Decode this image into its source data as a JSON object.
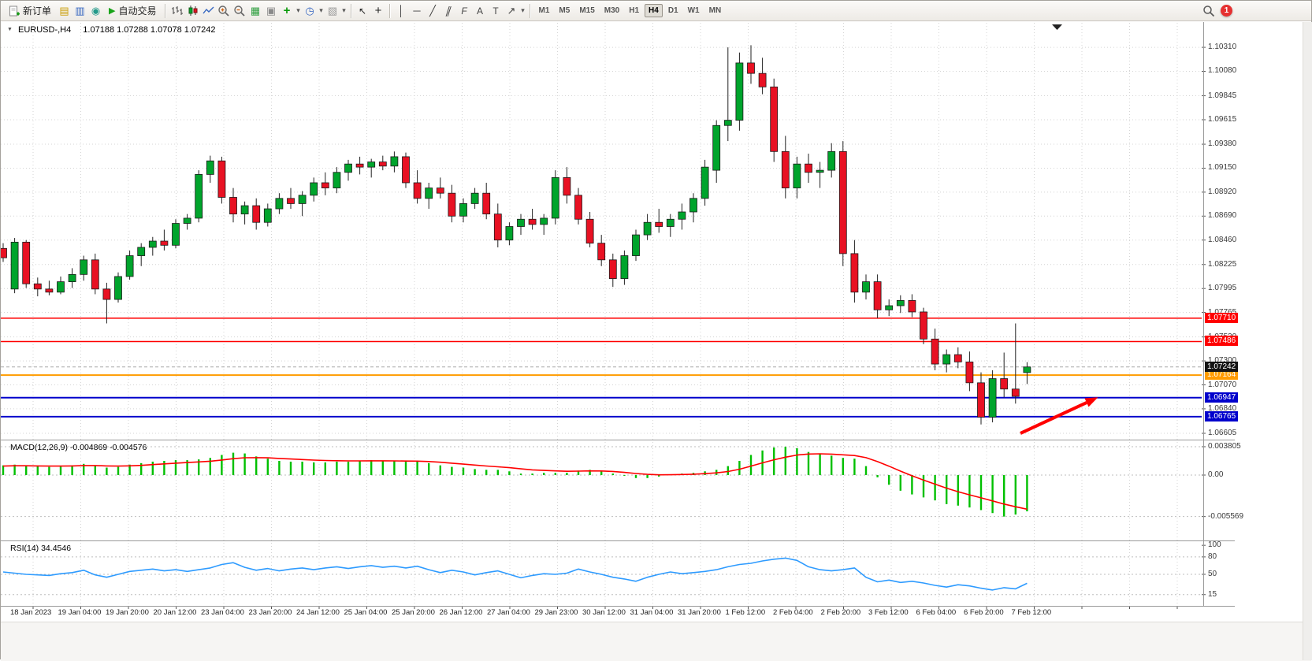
{
  "toolbar": {
    "new_order": {
      "label": "新订单"
    },
    "autotrading": {
      "label": "自动交易"
    },
    "timeframes": {
      "items": [
        "M1",
        "M5",
        "M15",
        "M30",
        "H1",
        "H4",
        "D1",
        "W1",
        "MN"
      ],
      "active": "H4"
    },
    "notification_count": "1"
  },
  "icons": {
    "chart_window": "▤",
    "market_watch": "▥",
    "navigator": "◉",
    "autotrading_play": "▶",
    "tile_windows": "▦",
    "new_window": "▣",
    "indicators_plus": "+",
    "period_clock": "◷",
    "templates": "▧",
    "dropdown": "▾",
    "cursor": "↖",
    "crosshair": "+",
    "vertical_line": "│",
    "horizontal_line": "─",
    "trendline": "╱",
    "channel": "∥",
    "fibonacci": "F",
    "text_tool": "A",
    "label_tool": "T",
    "arrow_tool": "↗",
    "header_collapse": "▼"
  },
  "chart_header": {
    "symbol": "EURUSD-,H4",
    "ohlc": "1.07188 1.07288 1.07078 1.07242"
  },
  "levels": [
    {
      "price": 1.0771,
      "label": "1.07710",
      "color": "#ff0000",
      "badge_bg": "#ff0000",
      "width": 1.4
    },
    {
      "price": 1.07486,
      "label": "1.07486",
      "color": "#ff0000",
      "badge_bg": "#ff0000",
      "width": 1.4
    },
    {
      "price": 1.07164,
      "label": "1.07164",
      "color": "#ff9c00",
      "badge_bg": "#ff9c00",
      "width": 2
    },
    {
      "price": 1.06947,
      "label": "1.06947",
      "color": "#0000cc",
      "badge_bg": "#0000cc",
      "width": 2
    },
    {
      "price": 1.06765,
      "label": "1.06765",
      "color": "#0000cc",
      "badge_bg": "#0000cc",
      "width": 2
    }
  ],
  "current_price": {
    "price": 1.07242,
    "label": "1.07242",
    "badge_bg": "#141414"
  },
  "annotations": {
    "arrow": {
      "color": "#ff0000",
      "from": [
        1294,
        549
      ],
      "to": [
        1378,
        510
      ]
    }
  },
  "chart_data": [
    {
      "type": "candlestick",
      "title": "EURUSD-,H4",
      "timeframe": "H4",
      "ylim": [
        1.06552,
        1.10545
      ],
      "up_color": "#00a42c",
      "down_color": "#e81123",
      "y_ticks": [
        "1.10310",
        "1.10080",
        "1.09845",
        "1.09615",
        "1.09380",
        "1.09150",
        "1.08920",
        "1.08690",
        "1.08460",
        "1.08225",
        "1.07995",
        "1.07765",
        "1.07530",
        "1.07300",
        "1.07070",
        "1.06840",
        "1.06605"
      ],
      "x_labels": [
        "18 Jan 2023",
        "19 Jan 04:00",
        "19 Jan 20:00",
        "20 Jan 12:00",
        "23 Jan 04:00",
        "23 Jan 20:00",
        "24 Jan 12:00",
        "25 Jan 04:00",
        "25 Jan 20:00",
        "26 Jan 12:00",
        "27 Jan 04:00",
        "29 Jan 23:00",
        "30 Jan 12:00",
        "31 Jan 04:00",
        "31 Jan 20:00",
        "1 Feb 12:00",
        "2 Feb 04:00",
        "2 Feb 20:00",
        "3 Feb 12:00",
        "6 Feb 04:00",
        "6 Feb 20:00",
        "7 Feb 12:00"
      ],
      "ohlc": [
        [
          1.0838,
          1.0843,
          1.0825,
          1.0829
        ],
        [
          1.0799,
          1.0848,
          1.0795,
          1.0844
        ],
        [
          1.0844,
          1.0846,
          1.08,
          1.0804
        ],
        [
          1.0804,
          1.081,
          1.0792,
          1.0799
        ],
        [
          1.0799,
          1.0807,
          1.0793,
          1.0796
        ],
        [
          1.0796,
          1.0811,
          1.0794,
          1.0806
        ],
        [
          1.0806,
          1.0819,
          1.08,
          1.0813
        ],
        [
          1.0813,
          1.0831,
          1.0807,
          1.0827
        ],
        [
          1.0827,
          1.0833,
          1.0794,
          1.0799
        ],
        [
          1.0799,
          1.0805,
          1.0766,
          1.0789
        ],
        [
          1.0789,
          1.0815,
          1.0786,
          1.0811
        ],
        [
          1.0811,
          1.0836,
          1.0808,
          1.0831
        ],
        [
          1.0831,
          1.0843,
          1.0821,
          1.0839
        ],
        [
          1.0839,
          1.0849,
          1.0831,
          1.0845
        ],
        [
          1.0845,
          1.0856,
          1.0836,
          1.0841
        ],
        [
          1.0841,
          1.0866,
          1.0838,
          1.0862
        ],
        [
          1.0862,
          1.0871,
          1.0856,
          1.0867
        ],
        [
          1.0867,
          1.0913,
          1.0863,
          1.0909
        ],
        [
          1.0909,
          1.0927,
          1.0901,
          1.0922
        ],
        [
          1.0922,
          1.0926,
          1.0881,
          1.0887
        ],
        [
          1.0887,
          1.0896,
          1.0863,
          1.0871
        ],
        [
          1.0871,
          1.0883,
          1.0861,
          1.0879
        ],
        [
          1.0879,
          1.0886,
          1.0856,
          1.0863
        ],
        [
          1.0863,
          1.0881,
          1.0859,
          1.0876
        ],
        [
          1.0876,
          1.0891,
          1.0871,
          1.0886
        ],
        [
          1.0886,
          1.0896,
          1.0876,
          1.0881
        ],
        [
          1.0881,
          1.0893,
          1.0869,
          1.0889
        ],
        [
          1.0889,
          1.0906,
          1.0883,
          1.0901
        ],
        [
          1.0901,
          1.0911,
          1.0889,
          1.0896
        ],
        [
          1.0896,
          1.0916,
          1.0891,
          1.0911
        ],
        [
          1.0911,
          1.0923,
          1.0903,
          1.0919
        ],
        [
          1.0919,
          1.0926,
          1.0909,
          1.0916
        ],
        [
          1.0916,
          1.0924,
          1.0906,
          1.0921
        ],
        [
          1.0921,
          1.0927,
          1.0913,
          1.0917
        ],
        [
          1.0917,
          1.0931,
          1.0911,
          1.0926
        ],
        [
          1.0926,
          1.093,
          1.0896,
          1.0901
        ],
        [
          1.0901,
          1.0913,
          1.0881,
          1.0886
        ],
        [
          1.0886,
          1.0901,
          1.0876,
          1.0896
        ],
        [
          1.0896,
          1.0906,
          1.0886,
          1.0891
        ],
        [
          1.0891,
          1.0899,
          1.0863,
          1.0869
        ],
        [
          1.0869,
          1.0886,
          1.0863,
          1.0881
        ],
        [
          1.0881,
          1.0896,
          1.0876,
          1.0891
        ],
        [
          1.0891,
          1.0901,
          1.0866,
          1.0871
        ],
        [
          1.0871,
          1.0881,
          1.0839,
          1.0846
        ],
        [
          1.0846,
          1.0863,
          1.0841,
          1.0859
        ],
        [
          1.0859,
          1.0871,
          1.0851,
          1.0866
        ],
        [
          1.0866,
          1.0876,
          1.0856,
          1.0861
        ],
        [
          1.0861,
          1.0871,
          1.0851,
          1.0867
        ],
        [
          1.0867,
          1.0913,
          1.0861,
          1.0906
        ],
        [
          1.0906,
          1.0916,
          1.0881,
          1.0889
        ],
        [
          1.0889,
          1.0896,
          1.0861,
          1.0866
        ],
        [
          1.0866,
          1.0873,
          1.0839,
          1.0843
        ],
        [
          1.0843,
          1.0851,
          1.0821,
          1.0827
        ],
        [
          1.0827,
          1.0833,
          1.0801,
          1.0809
        ],
        [
          1.0809,
          1.0836,
          1.0803,
          1.0831
        ],
        [
          1.0831,
          1.0856,
          1.0826,
          1.0851
        ],
        [
          1.0851,
          1.0871,
          1.0846,
          1.0863
        ],
        [
          1.0863,
          1.0876,
          1.0853,
          1.0859
        ],
        [
          1.0859,
          1.0871,
          1.0849,
          1.0866
        ],
        [
          1.0866,
          1.0881,
          1.0856,
          1.0873
        ],
        [
          1.0873,
          1.0891,
          1.0863,
          1.0886
        ],
        [
          1.0886,
          1.0923,
          1.0879,
          1.0916
        ],
        [
          1.0913,
          1.0961,
          1.0901,
          1.0956
        ],
        [
          1.0956,
          1.1031,
          1.0941,
          1.0961
        ],
        [
          1.0961,
          1.1026,
          1.0951,
          1.1016
        ],
        [
          1.1016,
          1.1033,
          1.0996,
          1.1006
        ],
        [
          1.1006,
          1.1021,
          1.0986,
          1.0993
        ],
        [
          1.0993,
          1.1001,
          1.0921,
          1.0931
        ],
        [
          1.0931,
          1.0946,
          1.0886,
          1.0896
        ],
        [
          1.0896,
          1.0926,
          1.0886,
          1.0919
        ],
        [
          1.0919,
          1.0929,
          1.0901,
          1.0911
        ],
        [
          1.0911,
          1.0921,
          1.0896,
          1.0913
        ],
        [
          1.0913,
          1.0939,
          1.0906,
          1.0931
        ],
        [
          1.0931,
          1.0941,
          1.0821,
          1.0833
        ],
        [
          1.0833,
          1.0846,
          1.0786,
          1.0796
        ],
        [
          1.0796,
          1.0813,
          1.0789,
          1.0806
        ],
        [
          1.0806,
          1.0813,
          1.0771,
          1.0779
        ],
        [
          1.0779,
          1.0789,
          1.0773,
          1.0783
        ],
        [
          1.0783,
          1.0793,
          1.0776,
          1.0788
        ],
        [
          1.0788,
          1.0794,
          1.0772,
          1.0777
        ],
        [
          1.0777,
          1.0781,
          1.0746,
          1.0751
        ],
        [
          1.0751,
          1.0761,
          1.0721,
          1.0727
        ],
        [
          1.0727,
          1.0741,
          1.0719,
          1.0736
        ],
        [
          1.0736,
          1.0743,
          1.0723,
          1.0729
        ],
        [
          1.0729,
          1.0739,
          1.0701,
          1.0709
        ],
        [
          1.0709,
          1.0719,
          1.0669,
          1.0676
        ],
        [
          1.0676,
          1.0721,
          1.0671,
          1.0713
        ],
        [
          1.0713,
          1.0738,
          1.0695,
          1.0703
        ],
        [
          1.0703,
          1.0766,
          1.0689,
          1.0696
        ],
        [
          1.07188,
          1.07288,
          1.07078,
          1.07242
        ]
      ]
    },
    {
      "type": "bar",
      "name": "MACD",
      "label": "MACD(12,26,9) -0.004869 -0.004576",
      "ylim": [
        -0.00867,
        0.00465
      ],
      "hist_color": "#00c000",
      "signal_color": "#ff0000",
      "yticks": [
        {
          "v": 0.003805,
          "t": "0.003805"
        },
        {
          "v": 0,
          "t": "0.00"
        },
        {
          "v": -0.005569,
          "t": "-0.005569"
        }
      ],
      "histogram": [
        0.0013,
        0.0014,
        0.0013,
        0.0012,
        0.0011,
        0.0012,
        0.0013,
        0.0015,
        0.0013,
        0.001,
        0.0011,
        0.0014,
        0.0016,
        0.0018,
        0.0019,
        0.002,
        0.002,
        0.0021,
        0.0023,
        0.0027,
        0.003,
        0.0029,
        0.0025,
        0.0022,
        0.0019,
        0.0018,
        0.0018,
        0.0017,
        0.0017,
        0.0018,
        0.0018,
        0.0019,
        0.002,
        0.0019,
        0.0019,
        0.0018,
        0.0018,
        0.0016,
        0.0013,
        0.0011,
        0.001,
        0.0008,
        0.0007,
        0.0007,
        0.0005,
        0.0002,
        0.0002,
        0.0003,
        0.0003,
        0.0003,
        0.0006,
        0.0007,
        0.0005,
        0.0002,
        -0.0001,
        -0.0004,
        -0.0004,
        -0.0002,
        0.0001,
        0.0002,
        0.0003,
        0.0005,
        0.0007,
        0.0012,
        0.0019,
        0.0027,
        0.0033,
        0.0037,
        0.003805,
        0.0036,
        0.0031,
        0.0028,
        0.0026,
        0.0023,
        0.0022,
        0.0012,
        -0.0003,
        -0.0013,
        -0.0021,
        -0.0026,
        -0.003,
        -0.0034,
        -0.0039,
        -0.0041,
        -0.00435,
        -0.0047,
        -0.0051,
        -0.005569,
        -0.0053,
        -0.004869
      ],
      "signal": [
        0.0012,
        0.00125,
        0.00125,
        0.00122,
        0.0012,
        0.0012,
        0.00122,
        0.00128,
        0.00128,
        0.00122,
        0.0012,
        0.00124,
        0.0013,
        0.0014,
        0.0015,
        0.0016,
        0.00168,
        0.00176,
        0.00186,
        0.00202,
        0.0022,
        0.00232,
        0.00234,
        0.00231,
        0.00223,
        0.00215,
        0.00208,
        0.00201,
        0.00195,
        0.00192,
        0.0019,
        0.0019,
        0.00191,
        0.00191,
        0.0019,
        0.00188,
        0.00187,
        0.00182,
        0.00172,
        0.00159,
        0.00147,
        0.00134,
        0.00121,
        0.00111,
        0.00099,
        0.00083,
        0.0007,
        0.00062,
        0.00056,
        0.00051,
        0.00053,
        0.00056,
        0.00055,
        0.00048,
        0.00036,
        0.00021,
        9e-05,
        3e-05,
        4e-05,
        7e-05,
        0.00012,
        0.00019,
        0.00029,
        0.00047,
        0.00078,
        0.0012,
        0.00164,
        0.00205,
        0.0024,
        0.00268,
        0.00282,
        0.00285,
        0.00281,
        0.00272,
        0.00262,
        0.00234,
        0.00181,
        0.00119,
        0.00053,
        -0.0001,
        -0.00068,
        -0.00122,
        -0.00176,
        -0.00223,
        -0.00265,
        -0.00306,
        -0.00347,
        -0.00389,
        -0.00425,
        -0.004576
      ]
    },
    {
      "type": "line",
      "name": "RSI",
      "label": "RSI(14) 34.4546",
      "ylim": [
        -3,
        107
      ],
      "line_color": "#2e9bff",
      "yticks": [
        {
          "v": 100,
          "t": "100"
        },
        {
          "v": 80,
          "t": "80"
        },
        {
          "v": 50,
          "t": "50"
        },
        {
          "v": 15,
          "t": "15"
        }
      ],
      "values": [
        54,
        52,
        50,
        49,
        48,
        51,
        53,
        57,
        49,
        45,
        50,
        55,
        57,
        59,
        56,
        58,
        55,
        58,
        61,
        67,
        70,
        62,
        57,
        60,
        56,
        59,
        61,
        58,
        61,
        63,
        60,
        63,
        65,
        62,
        64,
        61,
        64,
        58,
        53,
        57,
        54,
        49,
        53,
        56,
        50,
        44,
        48,
        51,
        50,
        52,
        59,
        54,
        50,
        45,
        42,
        38,
        45,
        50,
        54,
        51,
        53,
        55,
        58,
        63,
        67,
        69,
        73,
        76,
        78,
        74,
        63,
        58,
        56,
        58,
        61,
        45,
        37,
        40,
        36,
        38,
        35,
        31,
        28,
        32,
        30,
        26,
        23,
        27,
        25,
        34.4546
      ]
    }
  ]
}
